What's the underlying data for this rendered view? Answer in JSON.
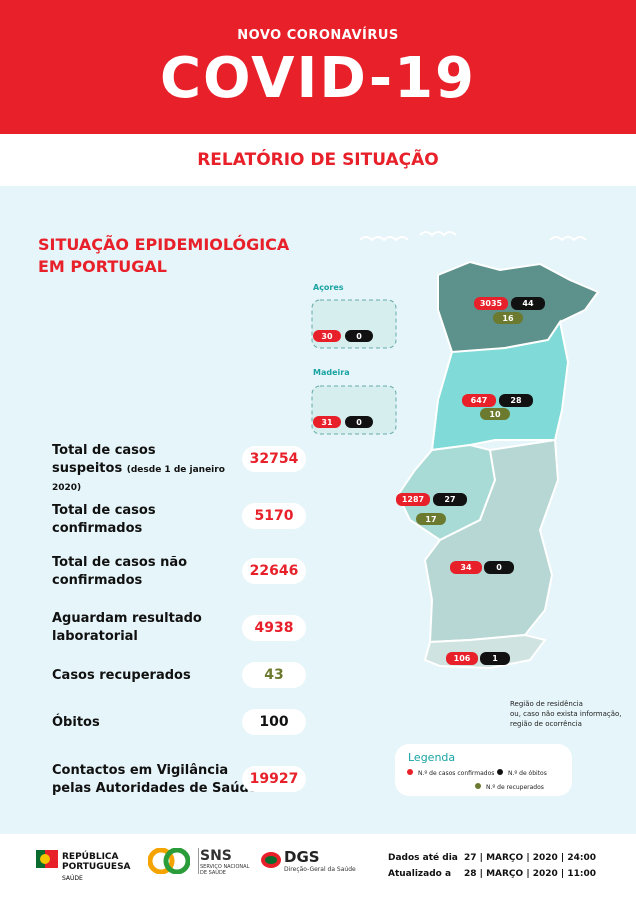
{
  "header": {
    "kicker": "NOVO CORONAVÍRUS",
    "title": "COVID-19",
    "subtitle": "RELATÓRIO DE SITUAÇÃO"
  },
  "section_title": [
    "SITUAÇÃO EPIDEMIOLÓGICA",
    "EM PORTUGAL"
  ],
  "stats": [
    {
      "label": [
        "Total de casos",
        "suspeitos"
      ],
      "note": [
        "(desde 1 de janeiro",
        "2020)"
      ],
      "value": 32754
    },
    {
      "label": [
        "Total de casos",
        "confirmados"
      ],
      "value": 5170
    },
    {
      "label": [
        "Total de casos não",
        "confirmados"
      ],
      "value": 22646
    },
    {
      "label": [
        "Aguardam resultado",
        "laboratorial"
      ],
      "value": 4938
    },
    {
      "label": [
        "Casos recuperados"
      ],
      "value": 43
    },
    {
      "label": [
        "Óbitos"
      ],
      "value": 100
    },
    {
      "label": [
        "Contactos em Vigilância",
        "pelas Autoridades de Saúde"
      ],
      "value": 19927
    }
  ],
  "islands": [
    {
      "name": "Açores",
      "cases": 30,
      "deaths": 0
    },
    {
      "name": "Madeira",
      "cases": 31,
      "deaths": 0
    }
  ],
  "regions": [
    {
      "cases": 3035,
      "deaths": 44,
      "recovered": 16
    },
    {
      "cases": 647,
      "deaths": 28,
      "recovered": 10
    },
    {
      "cases": 1287,
      "deaths": 27,
      "recovered": 17
    },
    {
      "cases": 34,
      "deaths": 0
    },
    {
      "cases": 106,
      "deaths": 1
    }
  ],
  "note": [
    "Região de residência",
    "ou, caso não exista informação,",
    "região de ocorrência"
  ],
  "legend": {
    "title": "Legenda",
    "cases": "N.º de casos confirmados",
    "deaths": "N.º de óbitos",
    "recovered": "N.º de recuperados"
  },
  "footer": {
    "republic": [
      "REPÚBLICA",
      "PORTUGUESA"
    ],
    "ministry": "SAÚDE",
    "sns": "SNS",
    "sns_full": [
      "SERVIÇO NACIONAL",
      "DE SAÚDE"
    ],
    "dgs": "DGS",
    "dgs_full": "Direção-Geral da Saúde",
    "data_label": "Dados até dia",
    "data_date": "27 | MARÇO | 2020 | 24:00",
    "updated_label": "Atualizado a",
    "updated_date": "28 | MARÇO | 2020 | 11:00"
  }
}
